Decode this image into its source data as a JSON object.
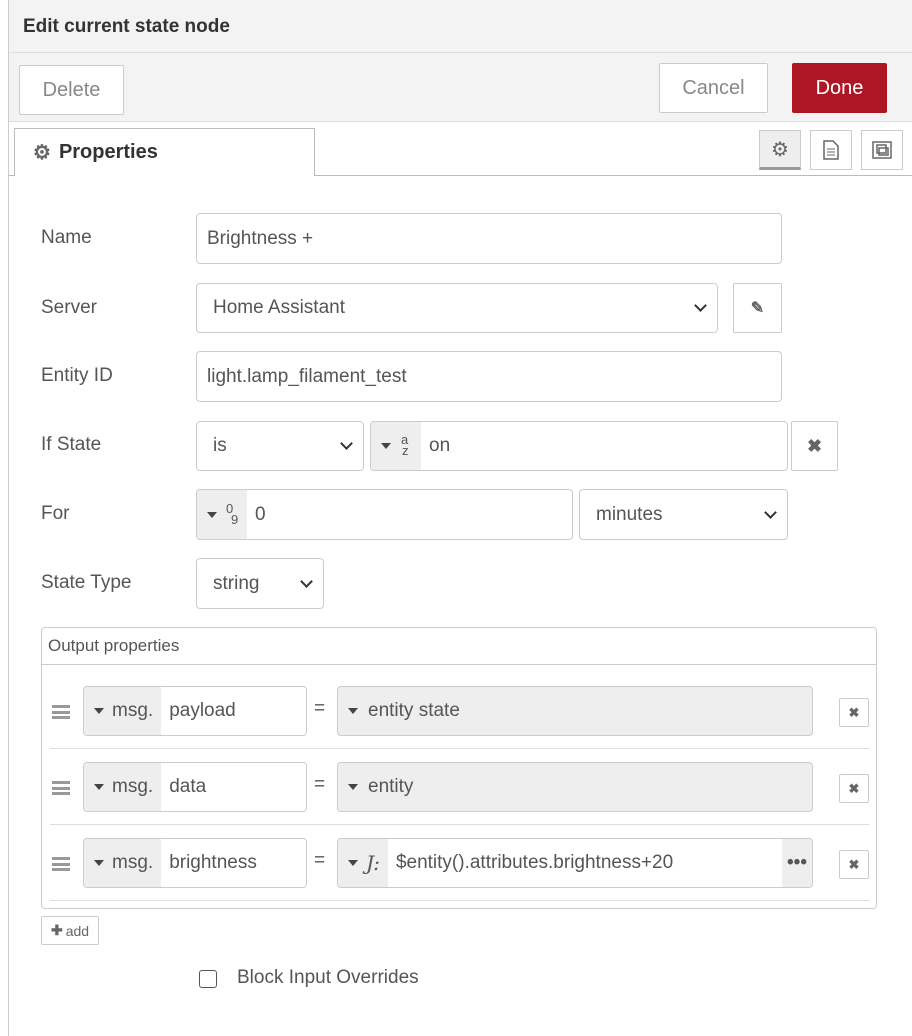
{
  "dialog": {
    "title": "Edit current state node"
  },
  "toolbar": {
    "delete": "Delete",
    "cancel": "Cancel",
    "done": "Done",
    "done_color": "#ad1625"
  },
  "tabs": {
    "properties": "Properties",
    "icons": [
      "gear-icon",
      "description-icon",
      "appearance-icon"
    ]
  },
  "form": {
    "name": {
      "label": "Name",
      "value": "Brightness +"
    },
    "server": {
      "label": "Server",
      "value": "Home Assistant"
    },
    "entity": {
      "label": "Entity ID",
      "value": "light.lamp_filament_test"
    },
    "if_state": {
      "label": "If State",
      "operator": "is",
      "type_glyph_a": "a",
      "type_glyph_z": "z",
      "value": "on"
    },
    "for": {
      "label": "For",
      "type_glyph_0": "0",
      "type_glyph_9": "9",
      "value": "0",
      "unit": "minutes"
    },
    "state_type": {
      "label": "State Type",
      "value": "string"
    }
  },
  "output": {
    "title": "Output properties",
    "rows": [
      {
        "prefix": "msg.",
        "property": "payload",
        "eq": "=",
        "value": "entity state"
      },
      {
        "prefix": "msg.",
        "property": "data",
        "eq": "=",
        "value": "entity"
      },
      {
        "prefix": "msg.",
        "property": "brightness",
        "eq": "=",
        "value": "$entity().attributes.brightness+20"
      }
    ],
    "add": "add"
  },
  "block_input": {
    "label": "Block Input Overrides",
    "checked": false
  }
}
